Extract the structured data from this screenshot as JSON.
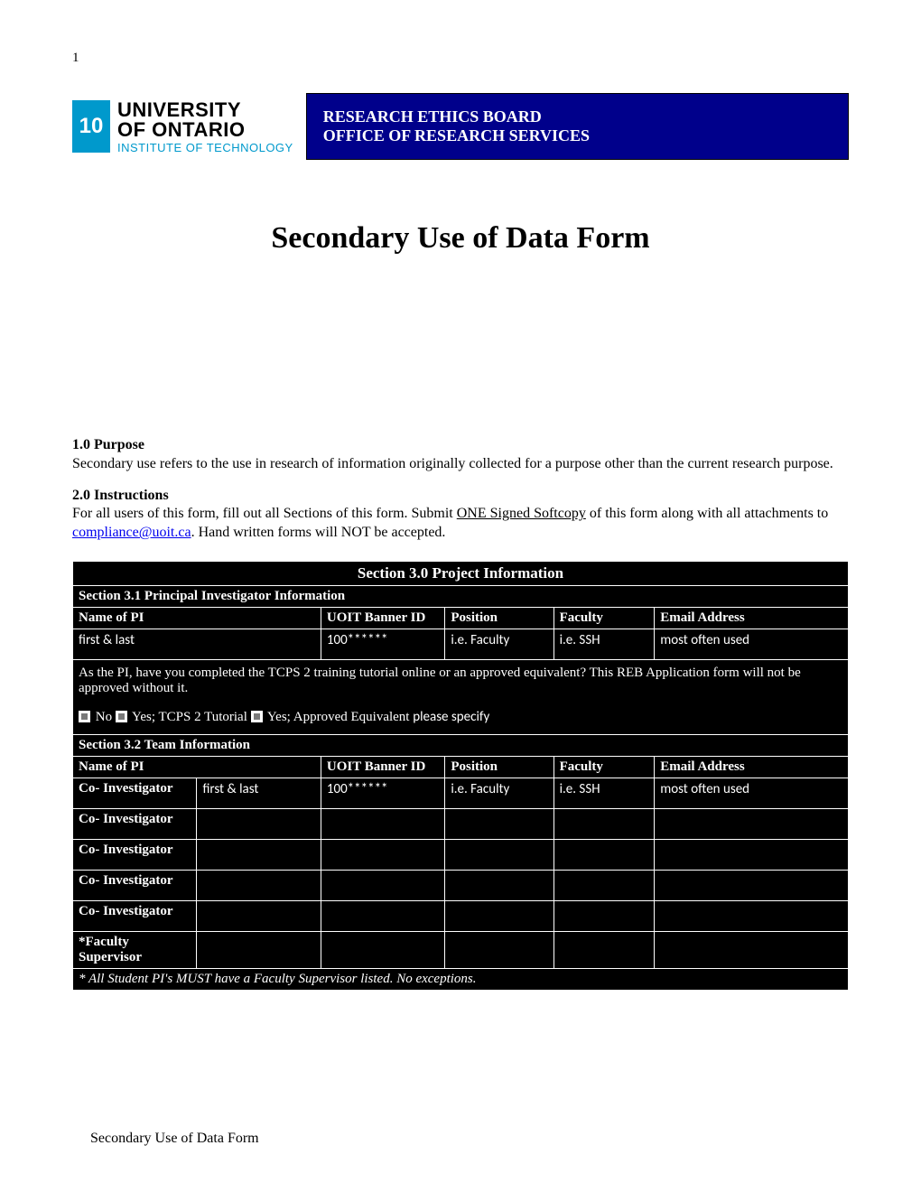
{
  "page_number": "1",
  "logo": {
    "badge_text": "10",
    "line1": "UNIVERSITY",
    "line2": "OF ONTARIO",
    "line3": "INSTITUTE OF TECHNOLOGY",
    "badge_bg": "#0099cc",
    "accent_color": "#0099cc"
  },
  "banner": {
    "line1": "RESEARCH ETHICS BOARD",
    "line2": "OFFICE OF RESEARCH SERVICES",
    "bg": "#00008B"
  },
  "title": "Secondary Use of Data Form",
  "purpose": {
    "heading": "1.0 Purpose",
    "text": "Secondary use refers to the use in research of information originally collected for a purpose other than the current research purpose."
  },
  "instructions": {
    "heading": "2.0 Instructions",
    "pre": "For all users of this form, fill out all Sections of this form. Submit ",
    "underlined": "ONE Signed Softcopy",
    "mid": " of this form along with all attachments to ",
    "email": "compliance@uoit.ca",
    "post": ". Hand written forms will NOT be accepted."
  },
  "table": {
    "title": "Section 3.0  Project Information",
    "s31": "Section 3.1  Principal Investigator Information",
    "cols": {
      "name": "Name of PI",
      "banner": "UOIT Banner ID",
      "position": "Position",
      "faculty": "Faculty",
      "email": "Email Address"
    },
    "pi_row": {
      "name": "first & last",
      "banner": "100******",
      "position": "i.e. Faculty",
      "faculty": "i.e. SSH",
      "email": "most often used"
    },
    "tcps_question": "As the PI, have you completed the TCPS 2 training tutorial online or an approved equivalent? This REB Application form will not be approved without it.",
    "opt_no": " No ",
    "opt_yes1": " Yes; TCPS 2 Tutorial  ",
    "opt_yes2": " Yes; Approved Equivalent ",
    "please_specify": "please specify",
    "s32": "Section 3.2  Team Information",
    "team_rows": [
      {
        "role": "Co- Investigator",
        "name": "first & last",
        "banner": "100******",
        "position": "i.e. Faculty",
        "faculty": "i.e. SSH",
        "email": "most often used"
      },
      {
        "role": "Co- Investigator",
        "name": "",
        "banner": "",
        "position": "",
        "faculty": "",
        "email": ""
      },
      {
        "role": "Co- Investigator",
        "name": "",
        "banner": "",
        "position": "",
        "faculty": "",
        "email": ""
      },
      {
        "role": "Co- Investigator",
        "name": "",
        "banner": "",
        "position": "",
        "faculty": "",
        "email": ""
      },
      {
        "role": "Co- Investigator",
        "name": "",
        "banner": "",
        "position": "",
        "faculty": "",
        "email": ""
      },
      {
        "role": "*Faculty Supervisor",
        "name": "",
        "banner": "",
        "position": "",
        "faculty": "",
        "email": ""
      }
    ],
    "footnote": "* All Student PI's MUST have a Faculty Supervisor listed. No exceptions."
  },
  "footer": "Secondary Use of Data Form",
  "colwidths": [
    "16%",
    "16%",
    "16%",
    "14%",
    "13%",
    "25%"
  ]
}
